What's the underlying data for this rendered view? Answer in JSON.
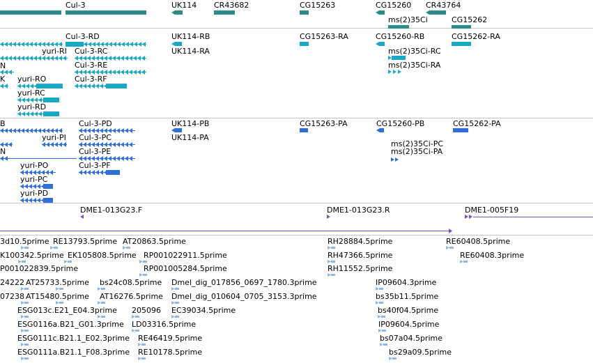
{
  "colors": {
    "gene": "#2e8b8b",
    "transcript": "#1aa8c4",
    "protein": "#2f6fd6",
    "clone": "#7a52b3",
    "est": "#8fb8dc",
    "divider": "#c8c8c8"
  },
  "tracks": {
    "gene": {
      "labels": [
        "Cul-3",
        "UK114",
        "CR43682",
        "CG15263",
        "CG15260",
        "CR43764",
        "ms(2)35Ci",
        "CG15262"
      ]
    },
    "transcript": {
      "labels": [
        "Cul-3-RD",
        "UK114-RB",
        "CG15263-RA",
        "CG15260-RB",
        "CG15262-RA",
        "yuri-RI",
        "Cul-3-RC",
        "UK114-RA",
        "ms(2)35Ci-RC",
        "N",
        "Cul-3-RE",
        "ms(2)35Ci-RA",
        "K",
        "yuri-RO",
        "Cul-3-RF",
        "yuri-RC",
        "yuri-RD"
      ]
    },
    "protein": {
      "labels": [
        "B",
        "Cul-3-PD",
        "UK114-PB",
        "CG15263-PA",
        "CG15260-PB",
        "CG15262-PA",
        "yuri-PI",
        "Cul-3-PC",
        "UK114-PA",
        "ms(2)35Ci-PC",
        "N",
        "Cul-3-PE",
        "ms(2)35Ci-PA",
        "yuri-PO",
        "Cul-3-PF",
        "yuri-PC",
        "yuri-PD"
      ]
    },
    "clone": {
      "labels": [
        "DME1-013G23.F",
        "DME1-013G23.R",
        "DME1-005F19"
      ]
    },
    "est": {
      "labels": [
        "3d10.5prime",
        "RE13793.5prime",
        "AT20863.5prime",
        "RH28884.5prime",
        "RE60408.5prime",
        "K100342.5prime",
        "EK105808.5prime",
        "RP001022911.5prime",
        "RH47366.5prime",
        "RE60408.3prime",
        "P001022839.5prime",
        "RP001005284.5prime",
        "RH11552.5prime",
        "24222",
        "AT25733.5prime",
        "bs24c08.5prime",
        "Dmel_dig_017856_0697_1780.3prime",
        "IP09604.3prime",
        "07238",
        "AT15480.5prime",
        "AT16276.5prime",
        "Dmel_dig_010604_0705_3153.3prime",
        "bs35b11.5prime",
        "ESG013c.E21_E04.3prime",
        "205096",
        "EC39034.5prime",
        "bs40f04.5prime",
        "ESG0116a.B21_G01.3prime",
        "LD03316.5prime",
        "IP09604.5prime",
        "ESG0111c.B21.1_E02.3prime",
        "RE46419.5prime",
        "bs07a04.5prime",
        "ESG0111a.B21.1_F08.3prime",
        "RE10178.5prime",
        "bs29a09.5prime"
      ]
    }
  }
}
